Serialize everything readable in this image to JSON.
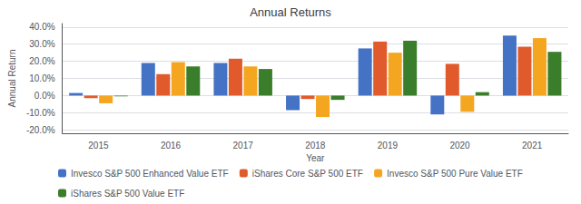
{
  "chart_data": {
    "type": "bar",
    "title": "Annual Returns",
    "xlabel": "Year",
    "ylabel": "Annual Return",
    "categories": [
      "2015",
      "2016",
      "2017",
      "2018",
      "2019",
      "2020",
      "2021"
    ],
    "series": [
      {
        "name": "Invesco S&P 500 Enhanced Value ETF",
        "color": "#4472C4",
        "values": [
          1.5,
          19.0,
          19.0,
          -8.5,
          27.5,
          -11.0,
          35.0
        ]
      },
      {
        "name": "iShares Core S&P 500 ETF",
        "color": "#E05A2B",
        "values": [
          -1.5,
          12.5,
          21.5,
          -2.0,
          31.5,
          18.5,
          28.5
        ]
      },
      {
        "name": "Invesco S&P 500 Pure Value ETF",
        "color": "#F4A621",
        "values": [
          -4.5,
          19.5,
          17.0,
          -12.5,
          25.0,
          -9.5,
          33.5
        ]
      },
      {
        "name": "iShares S&P 500 Value ETF",
        "color": "#3A7D2A",
        "values": [
          -0.5,
          17.0,
          15.5,
          -2.5,
          32.0,
          2.0,
          25.5
        ]
      }
    ],
    "ylim": [
      -22.0,
      42.0
    ],
    "yticks": [
      {
        "value": -20.0,
        "label": "-20.0%"
      },
      {
        "value": -10.0,
        "label": "-10.0%"
      },
      {
        "value": 0.0,
        "label": "0.0%"
      },
      {
        "value": 10.0,
        "label": "10.0%"
      },
      {
        "value": 20.0,
        "label": "20.0%"
      },
      {
        "value": 30.0,
        "label": "30.0%"
      },
      {
        "value": 40.0,
        "label": "40.0%"
      }
    ],
    "grid": true,
    "legend": "bottom"
  }
}
